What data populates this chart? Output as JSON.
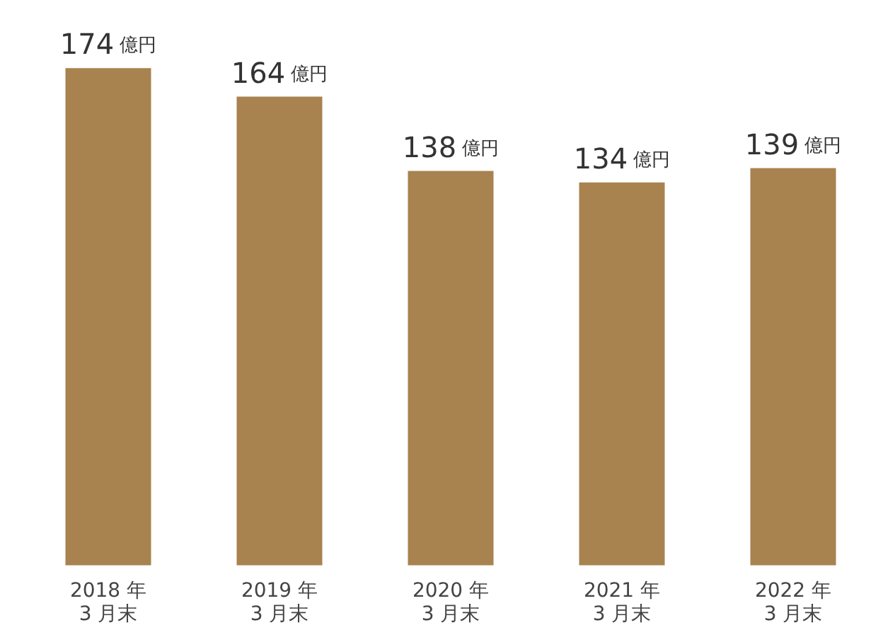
{
  "chart_data": {
    "type": "bar",
    "categories": [
      "2018 年\n3 月末",
      "2019 年\n3 月末",
      "2020 年\n3 月末",
      "2021 年\n3 月末",
      "2022 年\n3 月末"
    ],
    "values": [
      174,
      164,
      138,
      134,
      139
    ],
    "value_labels": [
      "174 億円",
      "164 億円",
      "138 億円",
      "134 億円",
      "139 億円"
    ],
    "color": "#a8824f",
    "grid": false,
    "legend": false,
    "tick_labels": "x"
  }
}
